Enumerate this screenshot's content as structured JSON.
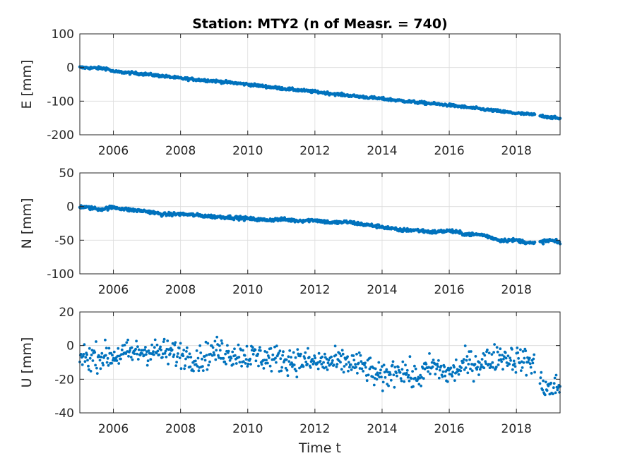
{
  "chart_data": [
    {
      "id": "E",
      "type": "scatter",
      "title": "Station: MTY2 (n of Measr. = 740)",
      "ylabel": "E [mm]",
      "xlabel": "",
      "xlim": [
        2005.0,
        2019.3
      ],
      "ylim": [
        -200,
        100
      ],
      "xticks": [
        2006,
        2008,
        2010,
        2012,
        2014,
        2016,
        2018
      ],
      "yticks": [
        -200,
        -100,
        0,
        100
      ],
      "grid": true,
      "color": "#0072bd",
      "marker_count": 740,
      "trend": [
        [
          2005.0,
          0
        ],
        [
          2005.8,
          -3
        ],
        [
          2006.0,
          -12
        ],
        [
          2007.0,
          -20
        ],
        [
          2008.0,
          -32
        ],
        [
          2009.0,
          -40
        ],
        [
          2010.0,
          -50
        ],
        [
          2011.0,
          -62
        ],
        [
          2012.0,
          -72
        ],
        [
          2013.0,
          -83
        ],
        [
          2014.0,
          -93
        ],
        [
          2015.0,
          -103
        ],
        [
          2016.0,
          -112
        ],
        [
          2017.0,
          -124
        ],
        [
          2018.0,
          -136
        ],
        [
          2018.5,
          -140
        ],
        [
          2019.3,
          -152
        ]
      ],
      "noise": 2
    },
    {
      "id": "N",
      "type": "scatter",
      "title": "",
      "ylabel": "N [mm]",
      "xlabel": "",
      "xlim": [
        2005.0,
        2019.3
      ],
      "ylim": [
        -100,
        50
      ],
      "xticks": [
        2006,
        2008,
        2010,
        2012,
        2014,
        2016,
        2018
      ],
      "yticks": [
        -100,
        -50,
        0,
        50
      ],
      "grid": true,
      "color": "#0072bd",
      "marker_count": 740,
      "trend": [
        [
          2005.0,
          0
        ],
        [
          2005.6,
          -4
        ],
        [
          2006.0,
          -1
        ],
        [
          2006.5,
          -5
        ],
        [
          2007.0,
          -7
        ],
        [
          2007.5,
          -12
        ],
        [
          2008.0,
          -11
        ],
        [
          2008.5,
          -13
        ],
        [
          2009.0,
          -15
        ],
        [
          2009.5,
          -16
        ],
        [
          2010.0,
          -18
        ],
        [
          2010.5,
          -20
        ],
        [
          2011.0,
          -19
        ],
        [
          2011.5,
          -21
        ],
        [
          2012.0,
          -20
        ],
        [
          2012.5,
          -24
        ],
        [
          2013.0,
          -23
        ],
        [
          2013.5,
          -27
        ],
        [
          2014.0,
          -30
        ],
        [
          2014.5,
          -35
        ],
        [
          2015.0,
          -35
        ],
        [
          2015.5,
          -38
        ],
        [
          2016.0,
          -36
        ],
        [
          2016.5,
          -41
        ],
        [
          2017.0,
          -42
        ],
        [
          2017.5,
          -50
        ],
        [
          2018.0,
          -50
        ],
        [
          2018.5,
          -55
        ],
        [
          2019.0,
          -50
        ],
        [
          2019.3,
          -54
        ]
      ],
      "noise": 1.3
    },
    {
      "id": "U",
      "type": "scatter",
      "title": "",
      "ylabel": "U [mm]",
      "xlabel": "Time t",
      "xlim": [
        2005.0,
        2019.3
      ],
      "ylim": [
        -40,
        20
      ],
      "xticks": [
        2006,
        2008,
        2010,
        2012,
        2014,
        2016,
        2018
      ],
      "yticks": [
        -40,
        -20,
        0,
        20
      ],
      "grid": true,
      "color": "#0072bd",
      "marker_count": 740,
      "trend": [
        [
          2005.0,
          -7
        ],
        [
          2006.0,
          -6
        ],
        [
          2007.0,
          -3
        ],
        [
          2008.0,
          -5
        ],
        [
          2008.6,
          -8
        ],
        [
          2009.0,
          -3
        ],
        [
          2010.0,
          -6
        ],
        [
          2011.0,
          -8
        ],
        [
          2012.0,
          -10
        ],
        [
          2013.0,
          -10
        ],
        [
          2013.5,
          -13
        ],
        [
          2014.0,
          -20
        ],
        [
          2014.5,
          -13
        ],
        [
          2015.0,
          -20
        ],
        [
          2015.5,
          -12
        ],
        [
          2016.0,
          -17
        ],
        [
          2016.5,
          -11
        ],
        [
          2017.0,
          -10
        ],
        [
          2017.5,
          -6
        ],
        [
          2018.0,
          -8
        ],
        [
          2018.5,
          -10
        ],
        [
          2018.7,
          -22
        ],
        [
          2019.0,
          -26
        ],
        [
          2019.3,
          -24
        ]
      ],
      "noise": 4
    }
  ]
}
